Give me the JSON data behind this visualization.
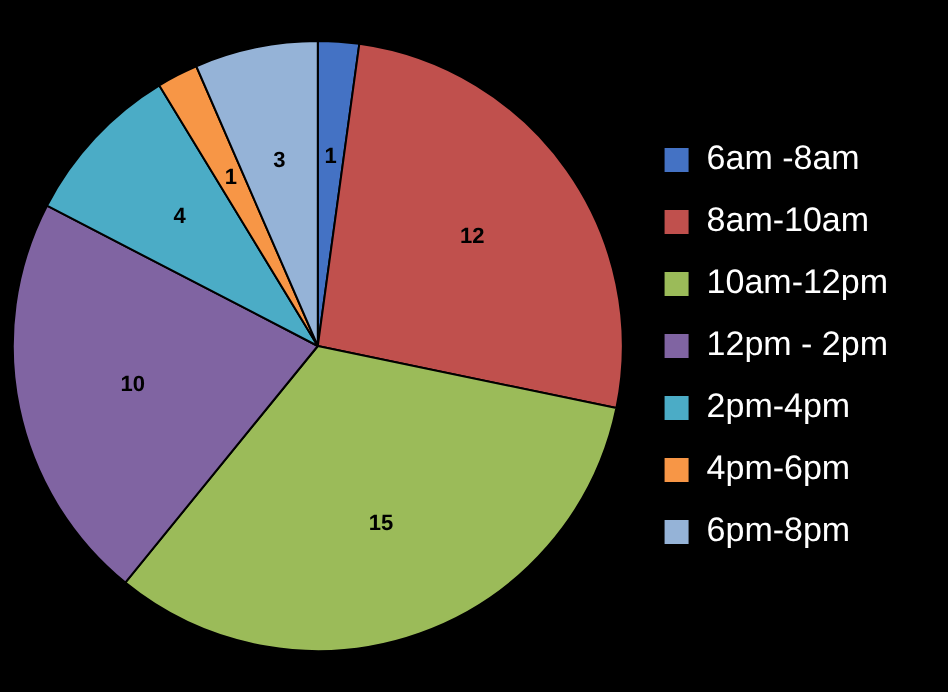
{
  "chart_data": {
    "type": "pie",
    "categories": [
      "6am -8am",
      "8am-10am",
      "10am-12pm",
      "12pm - 2pm",
      "2pm-4pm",
      "4pm-6pm",
      "6pm-8pm"
    ],
    "values": [
      1,
      12,
      15,
      10,
      4,
      1,
      3
    ],
    "colors": [
      "#4472c4",
      "#c0504d",
      "#9bbb59",
      "#8064a2",
      "#4bacc6",
      "#f79646",
      "#95b3d7"
    ],
    "data_labels": true,
    "legend": "right"
  }
}
